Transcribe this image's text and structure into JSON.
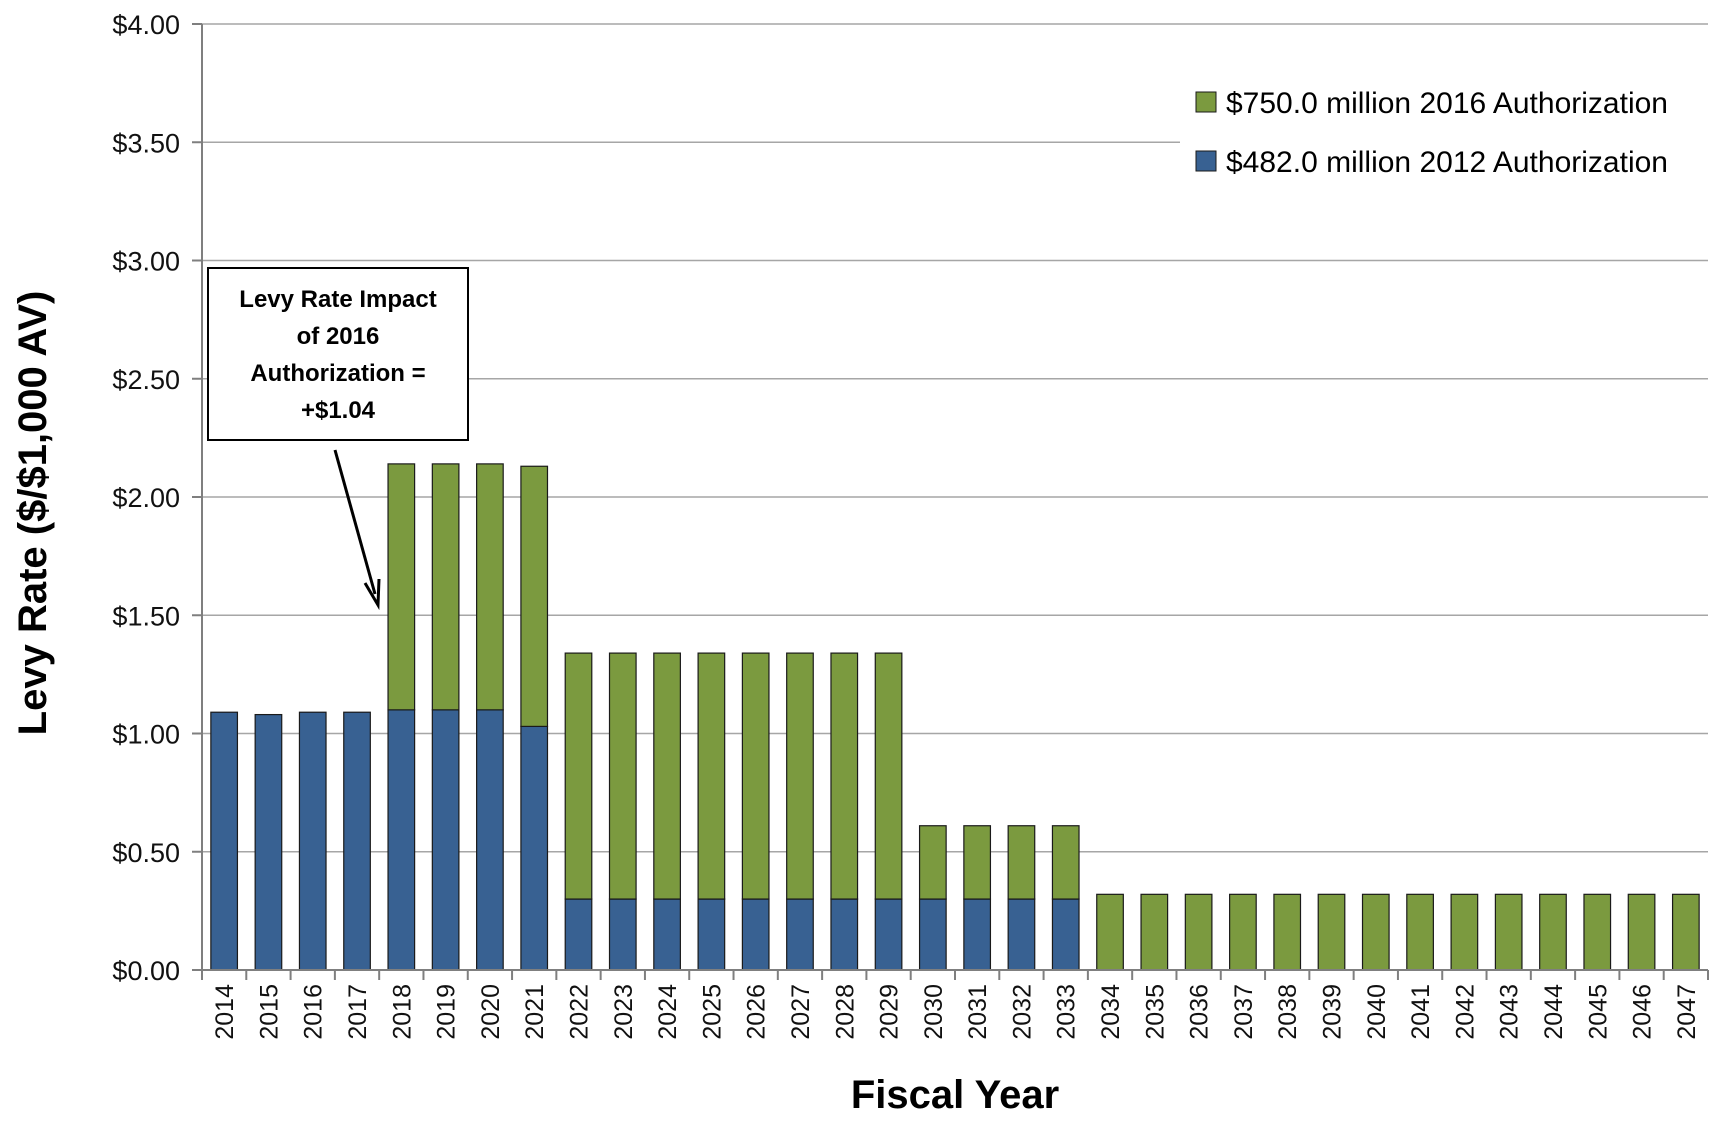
{
  "chart_data": {
    "type": "bar",
    "stacked": true,
    "title": "",
    "xlabel": "Fiscal Year",
    "ylabel": "Levy Rate ($/$1,000 AV)",
    "ylim": [
      0,
      4
    ],
    "y_ticks": [
      "$0.00",
      "$0.50",
      "$1.00",
      "$1.50",
      "$2.00",
      "$2.50",
      "$3.00",
      "$3.50",
      "$4.00"
    ],
    "y_tick_values": [
      0,
      0.5,
      1,
      1.5,
      2,
      2.5,
      3,
      3.5,
      4
    ],
    "grid": "horizontal",
    "legend_position": "top-right",
    "categories": [
      "2014",
      "2015",
      "2016",
      "2017",
      "2018",
      "2019",
      "2020",
      "2021",
      "2022",
      "2023",
      "2024",
      "2025",
      "2026",
      "2027",
      "2028",
      "2029",
      "2030",
      "2031",
      "2032",
      "2033",
      "2034",
      "2035",
      "2036",
      "2037",
      "2038",
      "2039",
      "2040",
      "2041",
      "2042",
      "2043",
      "2044",
      "2045",
      "2046",
      "2047"
    ],
    "series": [
      {
        "name": "$482.0 million 2012 Authorization",
        "color": "#386192",
        "values": [
          1.09,
          1.08,
          1.09,
          1.09,
          1.1,
          1.1,
          1.1,
          1.03,
          0.3,
          0.3,
          0.3,
          0.3,
          0.3,
          0.3,
          0.3,
          0.3,
          0.3,
          0.3,
          0.3,
          0.3,
          0,
          0,
          0,
          0,
          0,
          0,
          0,
          0,
          0,
          0,
          0,
          0,
          0,
          0
        ]
      },
      {
        "name": "$750.0 million 2016 Authorization",
        "color": "#7b9a3f",
        "values": [
          0,
          0,
          0,
          0,
          1.04,
          1.04,
          1.04,
          1.1,
          1.04,
          1.04,
          1.04,
          1.04,
          1.04,
          1.04,
          1.04,
          1.04,
          0.31,
          0.31,
          0.31,
          0.31,
          0.32,
          0.32,
          0.32,
          0.32,
          0.32,
          0.32,
          0.32,
          0.32,
          0.32,
          0.32,
          0.32,
          0.32,
          0.32,
          0.32
        ]
      }
    ],
    "legend_order": [
      "$750.0 million 2016 Authorization",
      "$482.0 million 2012 Authorization"
    ],
    "annotation": {
      "lines": [
        "Levy Rate Impact",
        "of 2016",
        "Authorization =",
        "+$1.04"
      ],
      "points_to": "2018"
    }
  }
}
